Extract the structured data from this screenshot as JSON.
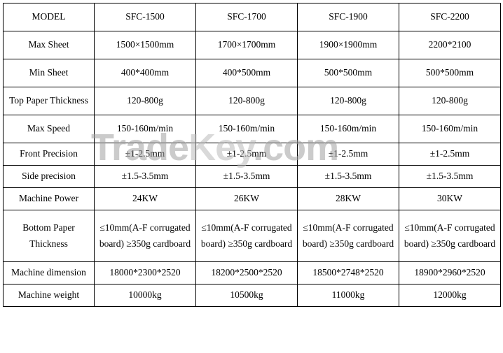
{
  "table": {
    "border_color": "#000000",
    "background_color": "#ffffff",
    "font_family": "Times New Roman",
    "font_size": 13.5,
    "text_color": "#000000",
    "columns": [
      "MODEL",
      "SFC-1500",
      "SFC-1700",
      "SFC-1900",
      "SFC-2200"
    ],
    "rows": [
      {
        "label": "Max Sheet",
        "cells": [
          "1500×1500mm",
          "1700×1700mm",
          "1900×1900mm",
          "2200*2100"
        ]
      },
      {
        "label": "Min Sheet",
        "cells": [
          "400*400mm",
          "400*500mm",
          "500*500mm",
          "500*500mm"
        ]
      },
      {
        "label": "Top Paper Thickness",
        "cells": [
          "120-800g",
          "120-800g",
          "120-800g",
          "120-800g"
        ]
      },
      {
        "label": "Max Speed",
        "cells": [
          "150-160m/min",
          "150-160m/min",
          "150-160m/min",
          "150-160m/min"
        ]
      },
      {
        "label": "Front Precision",
        "cells": [
          "±1-2.5mm",
          "±1-2.5mm",
          "±1-2.5mm",
          "±1-2.5mm"
        ]
      },
      {
        "label": "Side precision",
        "cells": [
          "±1.5-3.5mm",
          "±1.5-3.5mm",
          "±1.5-3.5mm",
          "±1.5-3.5mm"
        ]
      },
      {
        "label": "Machine Power",
        "cells": [
          "24KW",
          "26KW",
          "28KW",
          "30KW"
        ]
      },
      {
        "label": "Bottom Paper Thickness",
        "cells": [
          "≤10mm(A-F corrugated board) ≥350g cardboard",
          "≤10mm(A-F corrugated board) ≥350g cardboard",
          "≤10mm(A-F corrugated board) ≥350g cardboard",
          "≤10mm(A-F corrugated board) ≥350g cardboard"
        ]
      },
      {
        "label": "Machine dimension",
        "cells": [
          "18000*2300*2520",
          "18200*2500*2520",
          "18500*2748*2520",
          "18900*2960*2520"
        ]
      },
      {
        "label": "Machine weight",
        "cells": [
          "10000kg",
          "10500kg",
          "11000kg",
          "12000kg"
        ]
      }
    ]
  },
  "watermark": {
    "text_left": "Trade",
    "text_mid": "Key",
    "text_right": ".com",
    "font_size": 54,
    "color": "rgba(160,160,160,0.55)"
  }
}
